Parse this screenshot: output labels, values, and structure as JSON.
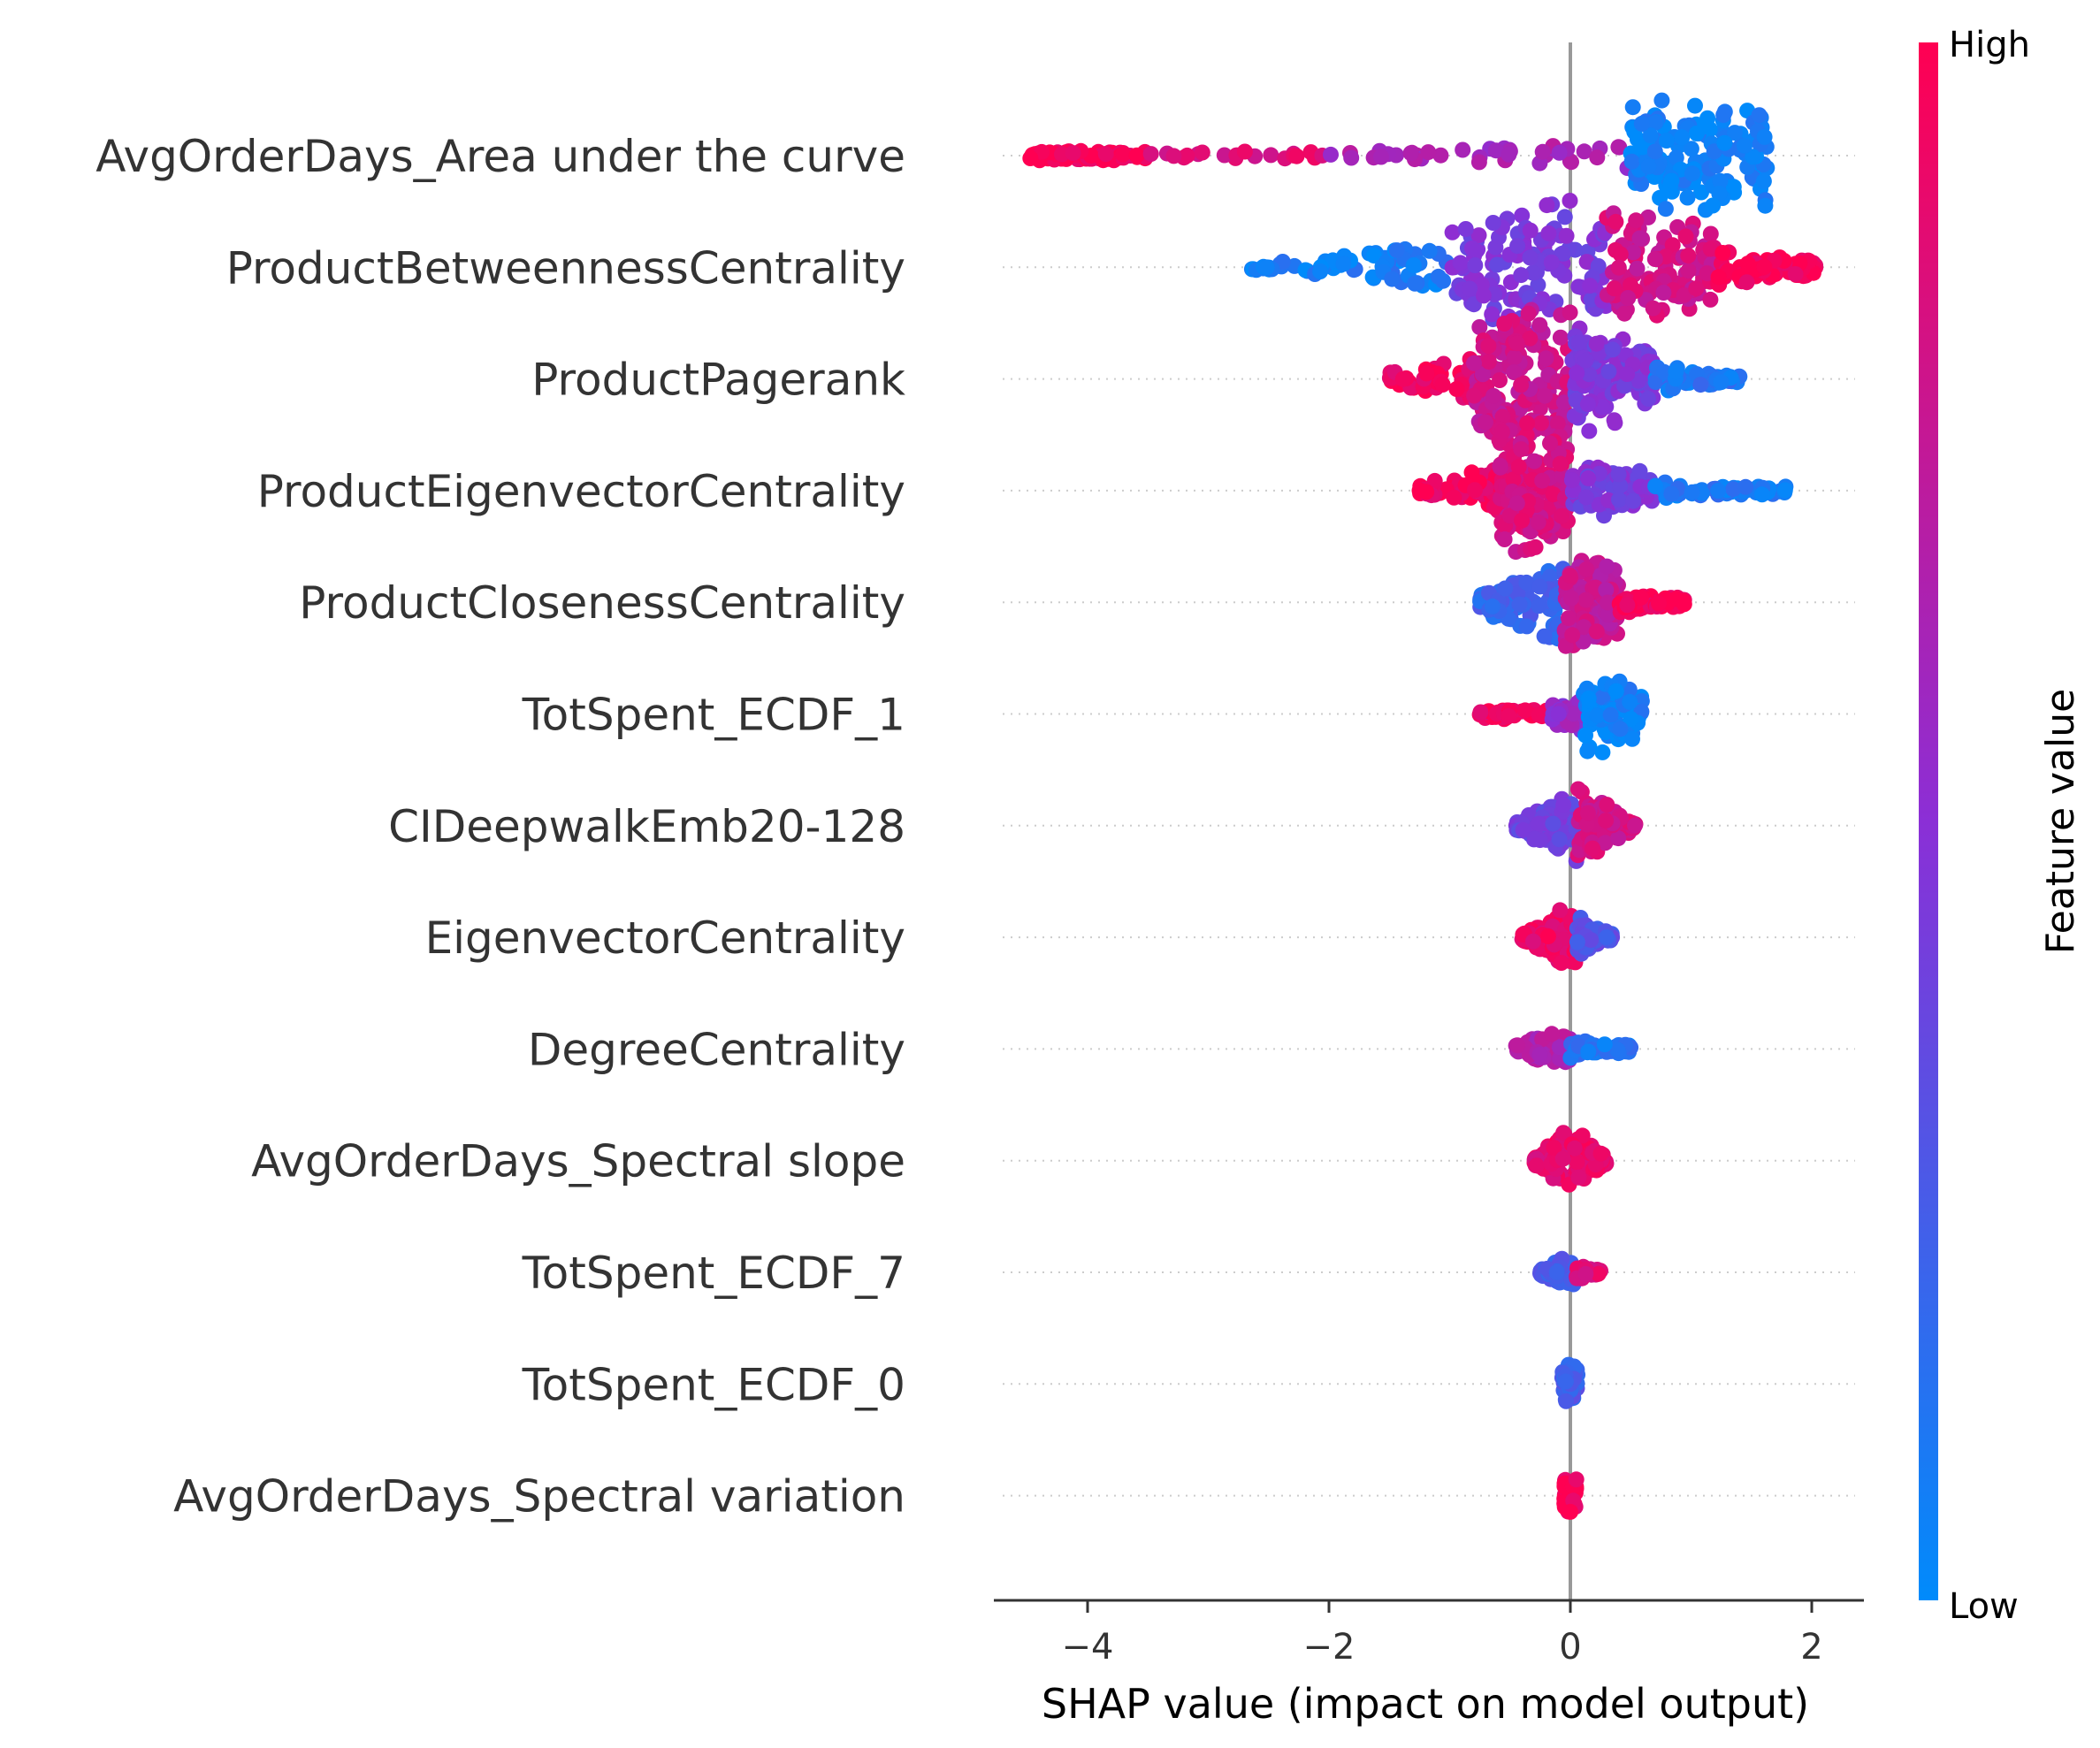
{
  "chart_data": {
    "type": "scatter",
    "subtype": "shap-beeswarm",
    "title": "",
    "xlabel": "SHAP value (impact on model output)",
    "xlim": [
      -4.8,
      2.4
    ],
    "xticks": [
      -4,
      -2,
      0,
      2
    ],
    "xtick_labels": [
      "−4",
      "−2",
      "0",
      "2"
    ],
    "zero_line": 0,
    "grid": false,
    "colors": {
      "low": "#008bfb",
      "mid": "#8b2fd6",
      "high": "#ff0052",
      "zero_line": "#999999",
      "row_guides": "#cccccc",
      "axis": "#333333"
    },
    "colorbar": {
      "label": "Feature value",
      "high_label": "High",
      "low_label": "Low",
      "position": "right"
    },
    "features": [
      {
        "name": "AvgOrderDays_Area under the curve",
        "shap_min": -4.5,
        "shap_max": 1.65,
        "density_peak": 1.2,
        "spread": 0.55,
        "segments": [
          {
            "lo": -4.5,
            "hi": -3.5,
            "val": 0.98,
            "n": 90,
            "w": 1.0
          },
          {
            "lo": -3.5,
            "hi": -2.0,
            "val": 0.85,
            "n": 20,
            "w": 0.25
          },
          {
            "lo": -2.0,
            "hi": 0.5,
            "val": 0.62,
            "n": 40,
            "w": 0.25
          },
          {
            "lo": 0.5,
            "hi": 1.65,
            "val": 0.05,
            "n": 140,
            "w": 1.0
          }
        ]
      },
      {
        "name": "ProductBetweennessCentrality",
        "shap_min": -2.7,
        "shap_max": 2.05,
        "density_peak": 0.0,
        "spread": 0.7,
        "segments": [
          {
            "lo": -2.7,
            "hi": -1.0,
            "val": 0.08,
            "n": 70,
            "w": 0.55
          },
          {
            "lo": -1.0,
            "hi": 0.3,
            "val": 0.45,
            "n": 130,
            "w": 0.95
          },
          {
            "lo": 0.3,
            "hi": 1.2,
            "val": 0.8,
            "n": 110,
            "w": 0.85
          },
          {
            "lo": 1.2,
            "hi": 2.05,
            "val": 0.97,
            "n": 70,
            "w": 0.5
          }
        ]
      },
      {
        "name": "ProductPagerank",
        "shap_min": -1.5,
        "shap_max": 1.45,
        "density_peak": -0.2,
        "spread": 0.7,
        "segments": [
          {
            "lo": -1.5,
            "hi": -0.8,
            "val": 0.95,
            "n": 45,
            "w": 0.45
          },
          {
            "lo": -0.8,
            "hi": 0.0,
            "val": 0.78,
            "n": 150,
            "w": 1.0
          },
          {
            "lo": 0.0,
            "hi": 0.7,
            "val": 0.45,
            "n": 110,
            "w": 0.8
          },
          {
            "lo": 0.7,
            "hi": 1.45,
            "val": 0.12,
            "n": 60,
            "w": 0.45
          }
        ]
      },
      {
        "name": "ProductEigenvectorCentrality",
        "shap_min": -1.25,
        "shap_max": 1.8,
        "density_peak": -0.25,
        "spread": 0.62,
        "segments": [
          {
            "lo": -1.25,
            "hi": -0.6,
            "val": 0.95,
            "n": 50,
            "w": 0.4
          },
          {
            "lo": -0.6,
            "hi": 0.0,
            "val": 0.82,
            "n": 140,
            "w": 1.0
          },
          {
            "lo": 0.0,
            "hi": 0.7,
            "val": 0.45,
            "n": 80,
            "w": 0.55
          },
          {
            "lo": 0.7,
            "hi": 1.8,
            "val": 0.1,
            "n": 60,
            "w": 0.3
          }
        ]
      },
      {
        "name": "ProductClosenessCentrality",
        "shap_min": -0.75,
        "shap_max": 0.95,
        "density_peak": 0.0,
        "spread": 0.5,
        "segments": [
          {
            "lo": -0.75,
            "hi": -0.05,
            "val": 0.2,
            "n": 90,
            "w": 0.85
          },
          {
            "lo": -0.05,
            "hi": 0.4,
            "val": 0.75,
            "n": 100,
            "w": 0.9
          },
          {
            "lo": 0.4,
            "hi": 0.95,
            "val": 0.97,
            "n": 60,
            "w": 0.45
          }
        ]
      },
      {
        "name": "TotSpent_ECDF_1",
        "shap_min": -0.75,
        "shap_max": 0.6,
        "density_peak": 0.2,
        "spread": 0.45,
        "segments": [
          {
            "lo": -0.75,
            "hi": -0.15,
            "val": 0.95,
            "n": 45,
            "w": 0.3
          },
          {
            "lo": -0.15,
            "hi": 0.1,
            "val": 0.55,
            "n": 30,
            "w": 0.4
          },
          {
            "lo": 0.1,
            "hi": 0.6,
            "val": 0.05,
            "n": 90,
            "w": 0.85
          }
        ]
      },
      {
        "name": "CIDeepwalkEmb20-128",
        "shap_min": -0.45,
        "shap_max": 0.55,
        "density_peak": 0.05,
        "spread": 0.45,
        "segments": [
          {
            "lo": -0.45,
            "hi": 0.05,
            "val": 0.4,
            "n": 90,
            "w": 0.75
          },
          {
            "lo": 0.05,
            "hi": 0.55,
            "val": 0.8,
            "n": 90,
            "w": 0.75
          }
        ]
      },
      {
        "name": "EigenvectorCentrality",
        "shap_min": -0.4,
        "shap_max": 0.35,
        "density_peak": 0.0,
        "spread": 0.4,
        "segments": [
          {
            "lo": -0.4,
            "hi": 0.05,
            "val": 0.92,
            "n": 110,
            "w": 0.75
          },
          {
            "lo": 0.05,
            "hi": 0.35,
            "val": 0.3,
            "n": 60,
            "w": 0.5
          }
        ]
      },
      {
        "name": "DegreeCentrality",
        "shap_min": -0.45,
        "shap_max": 0.5,
        "density_peak": -0.05,
        "spread": 0.35,
        "segments": [
          {
            "lo": -0.45,
            "hi": 0.0,
            "val": 0.65,
            "n": 60,
            "w": 0.5
          },
          {
            "lo": 0.0,
            "hi": 0.5,
            "val": 0.12,
            "n": 50,
            "w": 0.3
          }
        ]
      },
      {
        "name": "AvgOrderDays_Spectral slope",
        "shap_min": -0.3,
        "shap_max": 0.3,
        "density_peak": 0.0,
        "spread": 0.38,
        "segments": [
          {
            "lo": -0.3,
            "hi": 0.3,
            "val": 0.9,
            "n": 150,
            "w": 0.8
          }
        ]
      },
      {
        "name": "TotSpent_ECDF_7",
        "shap_min": -0.25,
        "shap_max": 0.25,
        "density_peak": 0.0,
        "spread": 0.34,
        "segments": [
          {
            "lo": -0.25,
            "hi": 0.05,
            "val": 0.25,
            "n": 60,
            "w": 0.55
          },
          {
            "lo": 0.05,
            "hi": 0.25,
            "val": 0.85,
            "n": 25,
            "w": 0.3
          }
        ]
      },
      {
        "name": "TotSpent_ECDF_0",
        "shap_min": -0.07,
        "shap_max": 0.07,
        "density_peak": 0.0,
        "spread": 0.32,
        "segments": [
          {
            "lo": -0.07,
            "hi": 0.07,
            "val": 0.25,
            "n": 60,
            "w": 0.6
          }
        ]
      },
      {
        "name": "AvgOrderDays_Spectral variation",
        "shap_min": -0.1,
        "shap_max": 0.15,
        "density_peak": 0.0,
        "spread": 0.32,
        "segments": [
          {
            "lo": -0.05,
            "hi": 0.05,
            "val": 0.97,
            "n": 60,
            "w": 0.55
          }
        ]
      }
    ]
  }
}
